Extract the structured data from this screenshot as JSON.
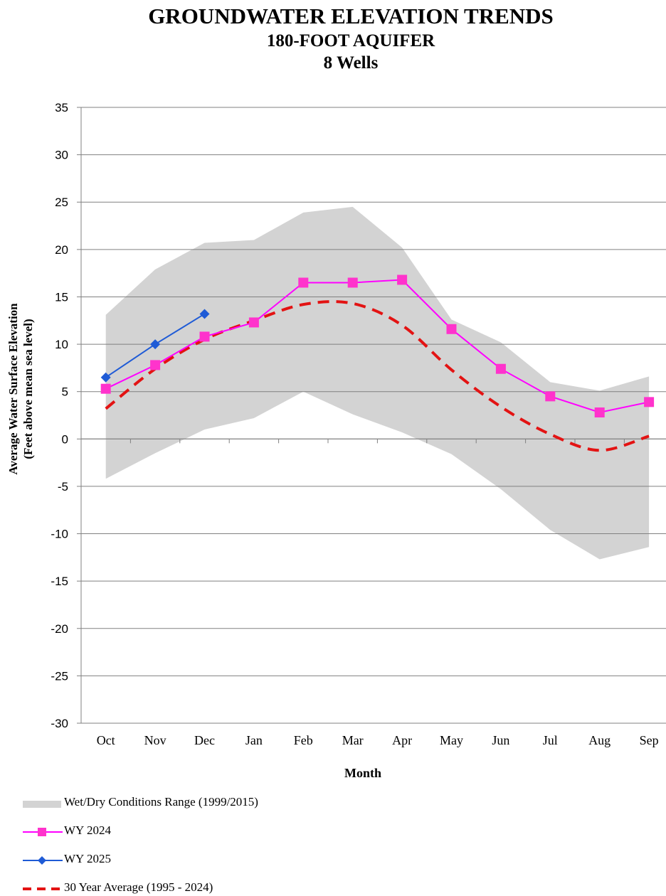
{
  "header": {
    "title": "GROUNDWATER ELEVATION TRENDS",
    "subtitle": "180-FOOT AQUIFER",
    "subtitle2": "8 Wells"
  },
  "colors": {
    "range_fill": "#d3d3d3",
    "wy2024": "#ff00ff",
    "wy2024_marker": "#ff33cc",
    "wy2025": "#1f5bd6",
    "avg30": "#e31313",
    "grid": "#808080"
  },
  "chart_data": {
    "type": "line",
    "title": "",
    "xlabel": "Month",
    "ylabel": "Average Water Surface Elevation",
    "ylabel2": "(Feet above mean sea level)",
    "ylim": [
      -30,
      35
    ],
    "yticks": [
      35,
      30,
      25,
      20,
      15,
      10,
      5,
      0,
      -5,
      -10,
      -15,
      -20,
      -25,
      -30
    ],
    "grid": true,
    "legend_position": "bottom-left",
    "categories": [
      "Oct",
      "Nov",
      "Dec",
      "Jan",
      "Feb",
      "Mar",
      "Apr",
      "May",
      "Jun",
      "Jul",
      "Aug",
      "Sep"
    ],
    "range_band": {
      "name": "Wet/Dry Conditions Range (1999/2015)",
      "upper": [
        13.1,
        17.9,
        20.7,
        21.0,
        23.9,
        24.5,
        20.2,
        12.6,
        10.2,
        6.0,
        5.1,
        6.6
      ],
      "lower": [
        -4.2,
        -1.5,
        1.0,
        2.2,
        5.0,
        2.6,
        0.7,
        -1.6,
        -5.3,
        -9.6,
        -12.7,
        -11.4
      ]
    },
    "series": [
      {
        "name": "WY 2024",
        "style": "solid-square",
        "values": [
          5.3,
          7.8,
          10.8,
          12.3,
          16.5,
          16.5,
          16.8,
          11.6,
          7.4,
          4.5,
          2.8,
          3.9
        ]
      },
      {
        "name": "WY 2025",
        "style": "solid-diamond",
        "values": [
          6.5,
          10.0,
          13.2,
          null,
          null,
          null,
          null,
          null,
          null,
          null,
          null,
          null
        ]
      },
      {
        "name": "30 Year Average (1995 - 2024)",
        "style": "dashed",
        "values": [
          3.2,
          7.4,
          10.5,
          12.5,
          14.2,
          14.3,
          12.0,
          7.3,
          3.4,
          0.5,
          -1.2,
          0.3
        ]
      }
    ]
  }
}
